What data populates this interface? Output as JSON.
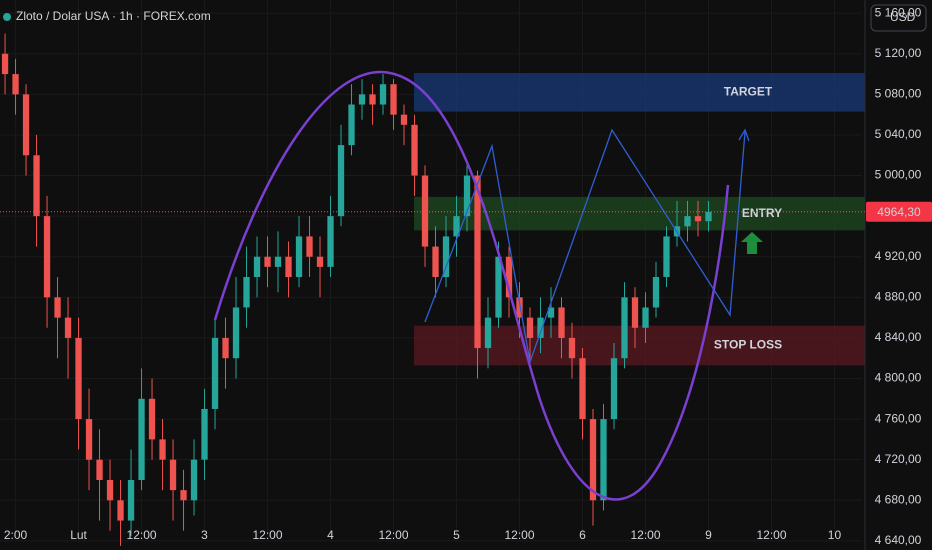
{
  "chart_data": {
    "type": "candlestick",
    "title": "Zloto / Dolar USA · 1h · FOREX.com",
    "currency": "USD",
    "up_color": "#26a69a",
    "down_color": "#ef5350",
    "open": [
      5120,
      5100,
      5080,
      5020,
      4960,
      4880,
      4860,
      4840,
      4760,
      4720,
      4700,
      4680,
      4660,
      4700,
      4780,
      4740,
      4720,
      4690,
      4680,
      4720,
      4770,
      4840,
      4820,
      4870,
      4900,
      4920,
      4910,
      4920,
      4900,
      4940,
      4920,
      4910,
      4960,
      5030,
      5070,
      5080,
      5070,
      5090,
      5060,
      5050,
      5000,
      4930,
      4900,
      4940,
      4960,
      5000,
      4830,
      4860,
      4920,
      4880,
      4860,
      4840,
      4860,
      4870,
      4840,
      4820,
      4760,
      4680,
      4760,
      4820,
      4880,
      4850,
      4870,
      4900,
      4940,
      4950,
      4960,
      4955
    ],
    "high": [
      5140,
      5115,
      5090,
      5040,
      4980,
      4900,
      4880,
      4860,
      4790,
      4750,
      4720,
      4700,
      4730,
      4810,
      4800,
      4760,
      4740,
      4710,
      4740,
      4790,
      4860,
      4860,
      4900,
      4930,
      4940,
      4940,
      4945,
      4935,
      4960,
      4960,
      4940,
      4980,
      5050,
      5090,
      5095,
      5090,
      5100,
      5095,
      5070,
      5060,
      5010,
      4950,
      4960,
      4980,
      5010,
      5005,
      4880,
      4935,
      4930,
      4895,
      4870,
      4880,
      4890,
      4880,
      4855,
      4830,
      4770,
      4775,
      4835,
      4895,
      4890,
      4885,
      4915,
      4950,
      4975,
      4975,
      4975,
      4975
    ],
    "low": [
      5080,
      5060,
      5000,
      4930,
      4850,
      4820,
      4800,
      4730,
      4690,
      4660,
      4650,
      4635,
      4645,
      4690,
      4720,
      4690,
      4660,
      4650,
      4665,
      4700,
      4750,
      4790,
      4800,
      4850,
      4880,
      4890,
      4885,
      4880,
      4890,
      4900,
      4880,
      4900,
      4950,
      5020,
      5055,
      5050,
      5060,
      5045,
      5030,
      4980,
      4910,
      4880,
      4890,
      4920,
      4945,
      4800,
      4810,
      4850,
      4860,
      4840,
      4815,
      4825,
      4840,
      4820,
      4800,
      4740,
      4655,
      4670,
      4750,
      4810,
      4830,
      4835,
      4860,
      4890,
      4930,
      4935,
      4940,
      4945
    ],
    "close": [
      5100,
      5080,
      5020,
      4960,
      4880,
      4860,
      4840,
      4760,
      4720,
      4700,
      4680,
      4660,
      4700,
      4780,
      4740,
      4720,
      4690,
      4680,
      4720,
      4770,
      4840,
      4820,
      4870,
      4900,
      4920,
      4910,
      4920,
      4900,
      4940,
      4920,
      4910,
      4960,
      5030,
      5070,
      5080,
      5070,
      5090,
      5060,
      5050,
      5000,
      4930,
      4900,
      4940,
      4960,
      5000,
      4830,
      4860,
      4920,
      4880,
      4860,
      4840,
      4860,
      4870,
      4840,
      4820,
      4760,
      4680,
      4760,
      4820,
      4880,
      4850,
      4870,
      4900,
      4940,
      4950,
      4960,
      4955,
      4964.3
    ],
    "ylim": [
      4631,
      5173
    ],
    "yticks": [
      {
        "value": 4640,
        "label": "4 640,00"
      },
      {
        "value": 4680,
        "label": "4 680,00"
      },
      {
        "value": 4720,
        "label": "4 720,00"
      },
      {
        "value": 4760,
        "label": "4 760,00"
      },
      {
        "value": 4800,
        "label": "4 800,00"
      },
      {
        "value": 4840,
        "label": "4 840,00"
      },
      {
        "value": 4880,
        "label": "4 880,00"
      },
      {
        "value": 4920,
        "label": "4 920,00"
      },
      {
        "value": 4960,
        "label": "4 960,00"
      },
      {
        "value": 5000,
        "label": "5 000,00"
      },
      {
        "value": 5040,
        "label": "5 040,00"
      },
      {
        "value": 5080,
        "label": "5 080,00"
      },
      {
        "value": 5120,
        "label": "5 120,00"
      },
      {
        "value": 5160,
        "label": "5 160,00"
      }
    ],
    "xlim": [
      -0.48,
      81.62
    ],
    "xticks": [
      {
        "value": 1,
        "label": "2:00"
      },
      {
        "value": 7,
        "label": "Lut"
      },
      {
        "value": 13,
        "label": "12:00"
      },
      {
        "value": 19,
        "label": "3"
      },
      {
        "value": 25,
        "label": "12:00"
      },
      {
        "value": 31,
        "label": "4"
      },
      {
        "value": 37,
        "label": "12:00"
      },
      {
        "value": 43,
        "label": "5"
      },
      {
        "value": 49,
        "label": "12:00"
      },
      {
        "value": 55,
        "label": "6"
      },
      {
        "value": 61,
        "label": "12:00"
      },
      {
        "value": 67,
        "label": "9"
      },
      {
        "value": 73,
        "label": "12:00"
      },
      {
        "value": 79,
        "label": "10"
      }
    ],
    "last_price": {
      "value": 4964.3,
      "label": "4964,30"
    },
    "zones": [
      {
        "label": "TARGET",
        "from": 5063,
        "to": 5101,
        "color": "#1a3a7a"
      },
      {
        "label": "ENTRY",
        "from": 4946,
        "to": 4979,
        "color": "#1f4a22"
      },
      {
        "label": "STOP LOSS",
        "from": 4813,
        "to": 4852,
        "color": "#5a1a22"
      }
    ]
  }
}
